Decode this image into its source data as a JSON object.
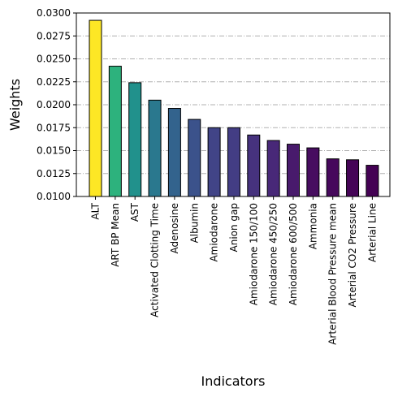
{
  "chart_data": {
    "type": "bar",
    "title": "",
    "xlabel": "Indicators",
    "ylabel": "Weights",
    "ylim": [
      0.01,
      0.03
    ],
    "yticks": [
      "0.0100",
      "0.0125",
      "0.0150",
      "0.0175",
      "0.0200",
      "0.0225",
      "0.0250",
      "0.0275",
      "0.0300"
    ],
    "grid": "horizontal dash-dot",
    "categories": [
      "ALT",
      "ART BP Mean",
      "AST",
      "Activated Clotting Time",
      "Adenosine",
      "Albumin",
      "Amiodarone",
      "Anion gap",
      "Amiodarone 150/100",
      "Amiodarone 450/250",
      "Amiodarone 600/500",
      "Ammonia",
      "Arterial Blood Pressure mean",
      "Arterial CO2 Pressure",
      "Arterial Line"
    ],
    "values": [
      0.0292,
      0.0242,
      0.0224,
      0.0205,
      0.0196,
      0.0184,
      0.0175,
      0.0175,
      0.0167,
      0.0161,
      0.0157,
      0.0153,
      0.0141,
      0.014,
      0.0134
    ],
    "colors": [
      "#fde725",
      "#2db27d",
      "#21918c",
      "#2a788e",
      "#33638d",
      "#3b528b",
      "#414487",
      "#433d84",
      "#46327e",
      "#482878",
      "#481a6c",
      "#470d60",
      "#46085c",
      "#450457",
      "#440154"
    ]
  }
}
